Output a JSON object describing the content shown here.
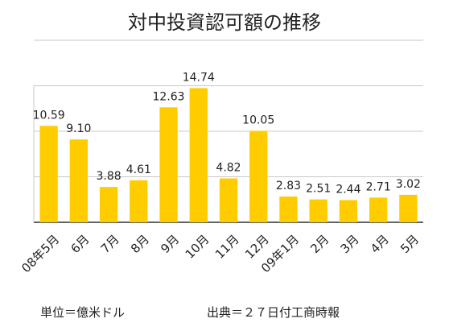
{
  "chart_data": {
    "type": "bar",
    "title": "対中投資認可額の推移",
    "categories": [
      "08年5月",
      "6月",
      "7月",
      "8月",
      "9月",
      "10月",
      "11月",
      "12月",
      "09年1月",
      "2月",
      "3月",
      "4月",
      "5月"
    ],
    "values": [
      10.59,
      9.1,
      3.88,
      4.61,
      12.63,
      14.74,
      4.82,
      10.05,
      2.83,
      2.51,
      2.44,
      2.71,
      3.02
    ],
    "value_labels": [
      "10.59",
      "9.10",
      "3.88",
      "4.61",
      "12.63",
      "14.74",
      "4.82",
      "10.05",
      "2.83",
      "2.51",
      "2.44",
      "2.71",
      "3.02"
    ],
    "ylim": [
      0,
      20
    ],
    "grid": true,
    "bar_color": "#FFCC00",
    "grid_color": "#C8C8C8",
    "footnote_unit": "単位＝億米ドル",
    "footnote_source": "出典＝２７日付工商時報"
  }
}
